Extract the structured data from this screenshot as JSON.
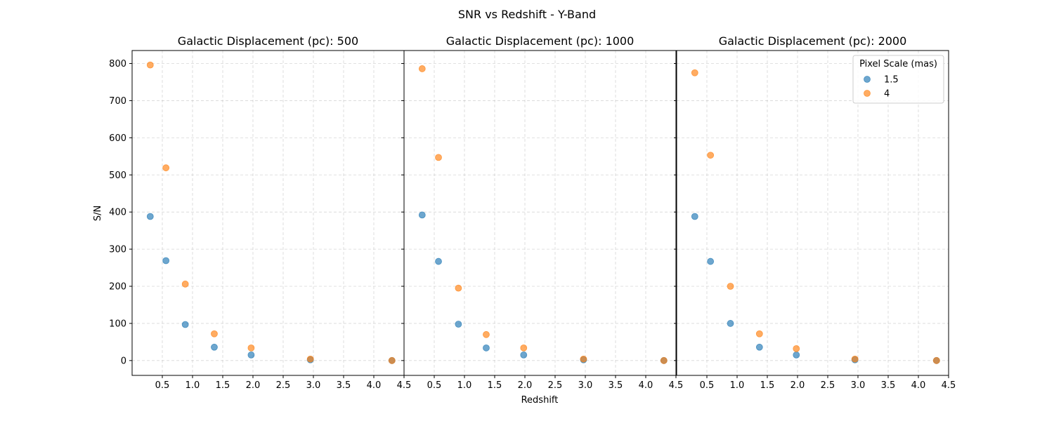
{
  "chart_data": {
    "type": "scatter",
    "title": "SNR vs Redshift - Y-Band",
    "xlabel": "Redshift",
    "ylabel": "S/N",
    "xlim": [
      0.0,
      4.5
    ],
    "ylim": [
      -40,
      835
    ],
    "xticks": [
      0.5,
      1.0,
      1.5,
      2.0,
      2.5,
      3.0,
      3.5,
      4.0,
      4.5
    ],
    "xtick_labels": [
      "0.5",
      "1.0",
      "1.5",
      "2.0",
      "2.5",
      "3.0",
      "3.5",
      "4.0",
      "4.5"
    ],
    "yticks": [
      0,
      100,
      200,
      300,
      400,
      500,
      600,
      700,
      800
    ],
    "ytick_labels": [
      "0",
      "100",
      "200",
      "300",
      "400",
      "500",
      "600",
      "700",
      "800"
    ],
    "grid": true,
    "legend": {
      "title": "Pixel Scale (mas)",
      "placement": "top-right",
      "entries": [
        "1.5",
        "4"
      ]
    },
    "panels": [
      {
        "title": "Galactic Displacement (pc): 500",
        "series": [
          {
            "name": "1.5",
            "color": "#1f77b4",
            "x": [
              0.3,
              0.56,
              0.88,
              1.36,
              1.97,
              2.95,
              4.3
            ],
            "y": [
              388,
              269,
              97,
              36,
              15,
              2,
              0
            ]
          },
          {
            "name": "4",
            "color": "#ff7f0e",
            "x": [
              0.3,
              0.56,
              0.88,
              1.36,
              1.97,
              2.95,
              4.3
            ],
            "y": [
              796,
              519,
              206,
              72,
              34,
              4,
              0
            ]
          }
        ]
      },
      {
        "title": "Galactic Displacement (pc): 1000",
        "series": [
          {
            "name": "1.5",
            "color": "#1f77b4",
            "x": [
              0.3,
              0.57,
              0.9,
              1.36,
              1.98,
              2.97,
              4.3
            ],
            "y": [
              392,
              267,
              98,
              34,
              15,
              2,
              0
            ]
          },
          {
            "name": "4",
            "color": "#ff7f0e",
            "x": [
              0.3,
              0.57,
              0.9,
              1.36,
              1.98,
              2.97,
              4.3
            ],
            "y": [
              786,
              547,
              195,
              70,
              34,
              4,
              0
            ]
          }
        ]
      },
      {
        "title": "Galactic Displacement (pc): 2000",
        "series": [
          {
            "name": "1.5",
            "color": "#1f77b4",
            "x": [
              0.3,
              0.56,
              0.89,
              1.37,
              1.98,
              2.95,
              4.3
            ],
            "y": [
              388,
              267,
              100,
              36,
              15,
              2,
              0
            ]
          },
          {
            "name": "4",
            "color": "#ff7f0e",
            "x": [
              0.3,
              0.56,
              0.89,
              1.37,
              1.98,
              2.95,
              4.3
            ],
            "y": [
              775,
              553,
              200,
              72,
              32,
              4,
              0
            ]
          }
        ]
      }
    ]
  }
}
